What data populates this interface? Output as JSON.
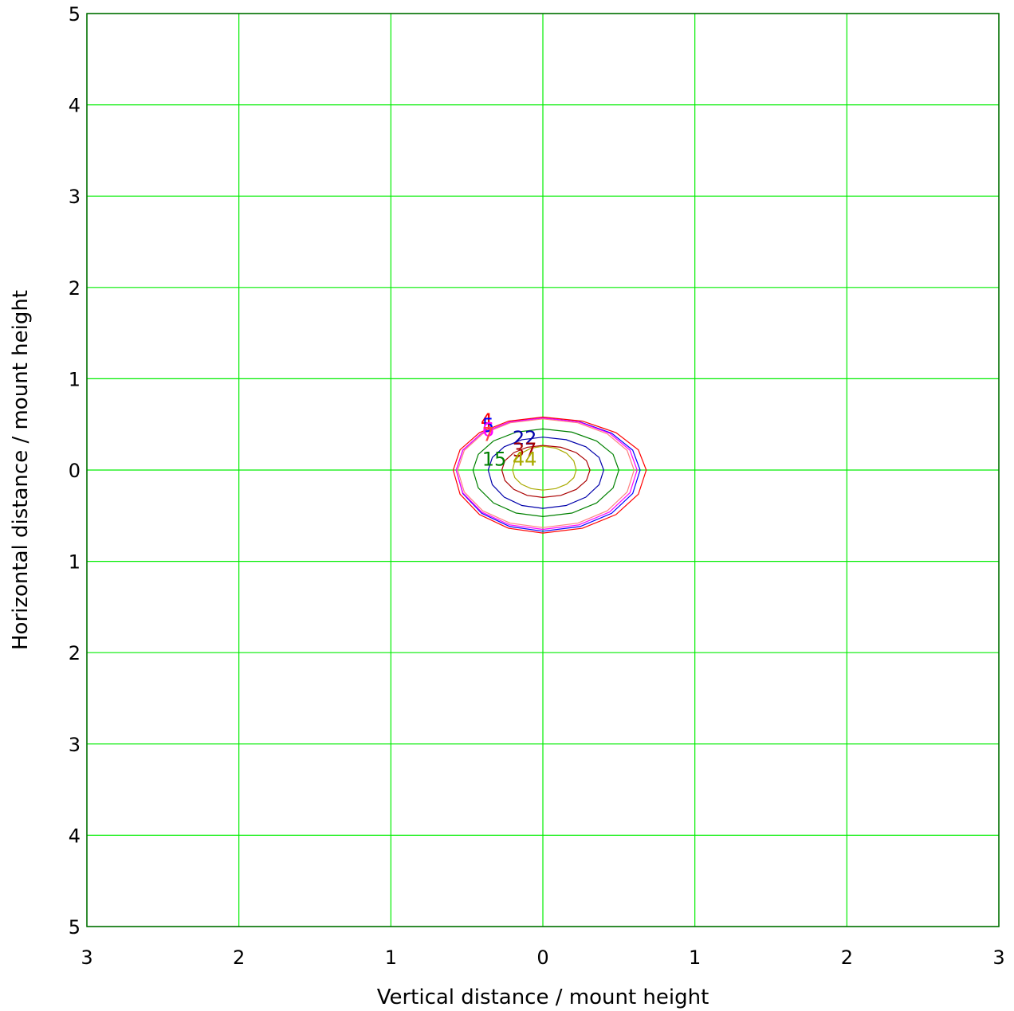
{
  "chart_data": {
    "type": "contour",
    "xlabel": "Vertical distance / mount height",
    "ylabel": "Horizontal distance / mount height",
    "xlim": [
      -3,
      3
    ],
    "ylim": [
      -5,
      5
    ],
    "x_tick_labels": [
      "3",
      "2",
      "1",
      "0",
      "1",
      "2",
      "3"
    ],
    "y_tick_labels": [
      "5",
      "4",
      "3",
      "2",
      "1",
      "0",
      "1",
      "2",
      "3",
      "4",
      "5"
    ],
    "grid": true,
    "grid_color": "#00ee00",
    "frame_color": "#006600",
    "contours": [
      {
        "label": "4",
        "color": "#ff0000",
        "rx_left": 0.59,
        "rx_right": 0.68,
        "ry_top": 0.58,
        "ry_bottom": 0.69
      },
      {
        "label": "5",
        "color": "#0000ff",
        "rx_left": 0.57,
        "rx_right": 0.64,
        "ry_top": 0.57,
        "ry_bottom": 0.67
      },
      {
        "label": "6",
        "color": "#ff00ff",
        "rx_left": 0.57,
        "rx_right": 0.62,
        "ry_top": 0.57,
        "ry_bottom": 0.65
      },
      {
        "label": "7",
        "color": "#ff8080",
        "rx_left": 0.56,
        "rx_right": 0.6,
        "ry_top": 0.56,
        "ry_bottom": 0.63
      },
      {
        "label": "15",
        "color": "#008000",
        "rx_left": 0.46,
        "rx_right": 0.5,
        "ry_top": 0.45,
        "ry_bottom": 0.51
      },
      {
        "label": "22",
        "color": "#0000aa",
        "rx_left": 0.36,
        "rx_right": 0.4,
        "ry_top": 0.36,
        "ry_bottom": 0.42
      },
      {
        "label": "37",
        "color": "#aa0000",
        "rx_left": 0.27,
        "rx_right": 0.31,
        "ry_top": 0.27,
        "ry_bottom": 0.3
      },
      {
        "label": "44",
        "color": "#aaaa00",
        "rx_left": 0.2,
        "rx_right": 0.22,
        "ry_top": 0.26,
        "ry_bottom": 0.22
      }
    ],
    "contour_labels": [
      {
        "text": "4",
        "color": "#ff0000",
        "x": -0.41,
        "y": 0.47
      },
      {
        "text": "5",
        "color": "#0000ff",
        "x": -0.4,
        "y": 0.42
      },
      {
        "text": "6",
        "color": "#ff00ff",
        "x": -0.4,
        "y": 0.37
      },
      {
        "text": "7",
        "color": "#ff4444",
        "x": -0.4,
        "y": 0.32
      },
      {
        "text": "15",
        "color": "#008000",
        "x": -0.4,
        "y": 0.05
      },
      {
        "text": "22",
        "color": "#0000aa",
        "x": -0.2,
        "y": 0.28
      },
      {
        "text": "37",
        "color": "#aa0000",
        "x": -0.2,
        "y": 0.15
      },
      {
        "text": "44",
        "color": "#aaaa00",
        "x": -0.2,
        "y": 0.05
      }
    ]
  }
}
